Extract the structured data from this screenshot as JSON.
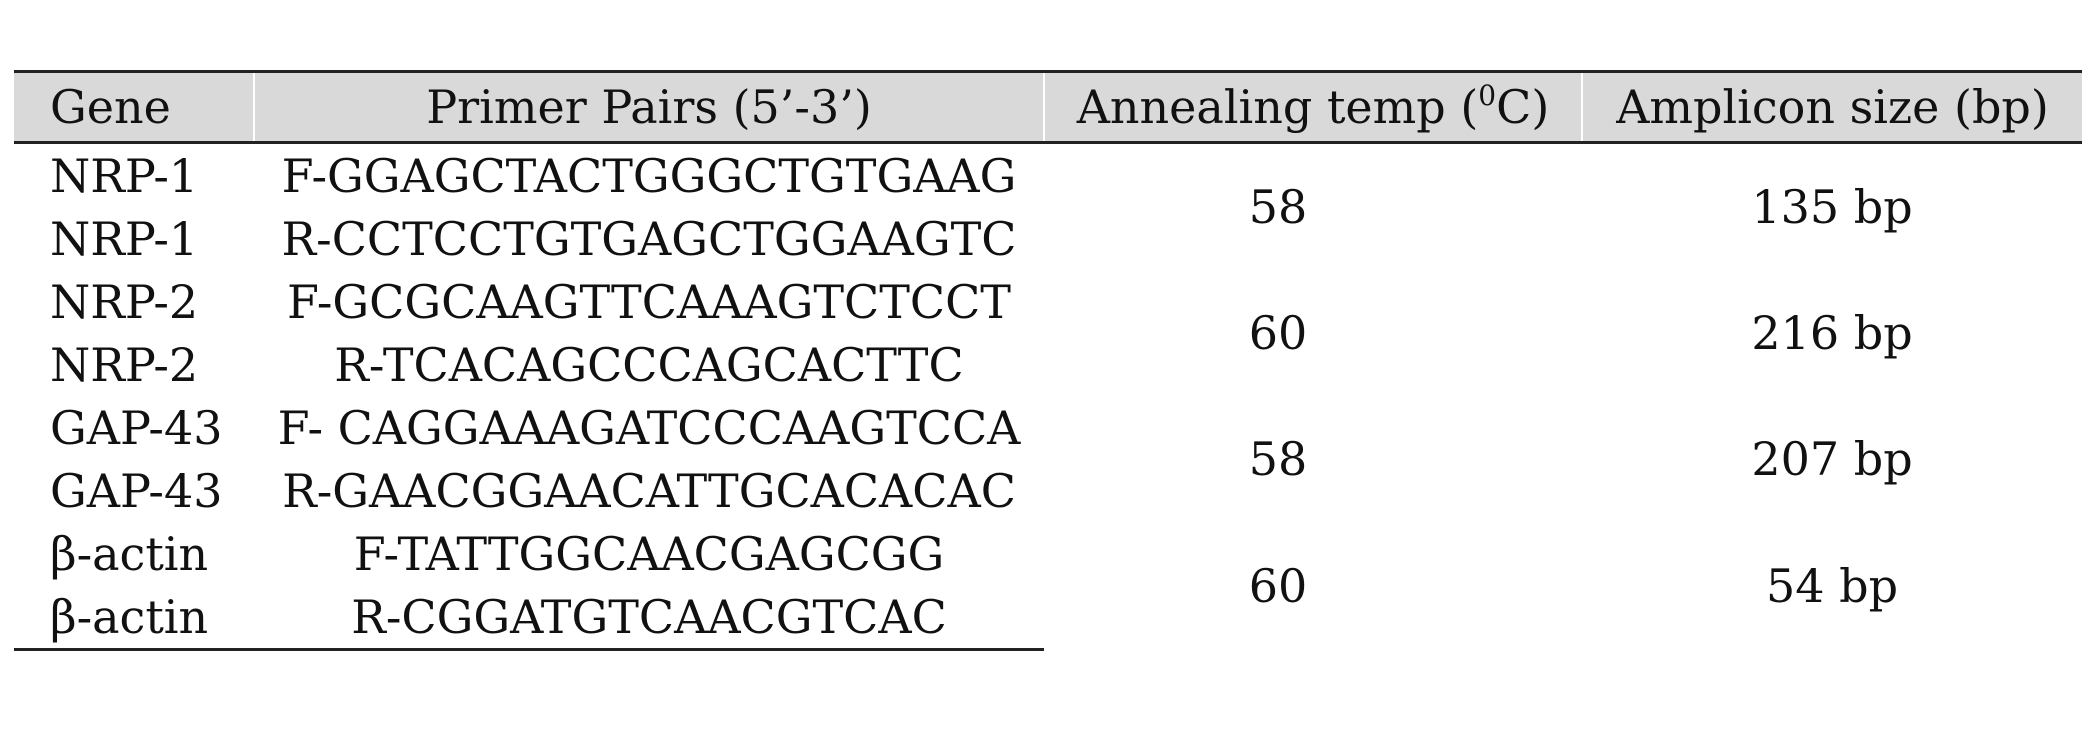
{
  "table": {
    "headers": {
      "gene": "Gene",
      "primer": "Primer Pairs (5’-3’)",
      "temp_prefix": "Annealing temp (",
      "temp_sup": "0",
      "temp_suffix": "C)",
      "amplicon": "Amplicon size (bp)"
    },
    "groups": [
      {
        "rows": [
          {
            "gene": "NRP-1",
            "primer": "F-GGAGCTACTGGGCTGTGAAG"
          },
          {
            "gene": "NRP-1",
            "primer": "R-CCTCCTGTGAGCTGGAAGTC"
          }
        ],
        "temp": "58",
        "amplicon": "135 bp"
      },
      {
        "rows": [
          {
            "gene": "NRP-2",
            "primer": "F-GCGCAAGTTCAAAGTCTCCT"
          },
          {
            "gene": "NRP-2",
            "primer": "R-TCACAGCCCAGCACTTC"
          }
        ],
        "temp": "60",
        "amplicon": "216 bp"
      },
      {
        "rows": [
          {
            "gene": "GAP-43",
            "primer": "F- CAGGAAAGATCCCAAGTCCA"
          },
          {
            "gene": "GAP-43",
            "primer": "R-GAACGGAACATTGCACACAC"
          }
        ],
        "temp": "58",
        "amplicon": "207 bp"
      },
      {
        "rows": [
          {
            "gene": "β-actin",
            "primer": "F-TATTGGCAACGAGCGG"
          },
          {
            "gene": "β-actin",
            "primer": "R-CGGATGTCAACGTCAC"
          }
        ],
        "temp": "60",
        "amplicon": "54 bp"
      }
    ]
  }
}
